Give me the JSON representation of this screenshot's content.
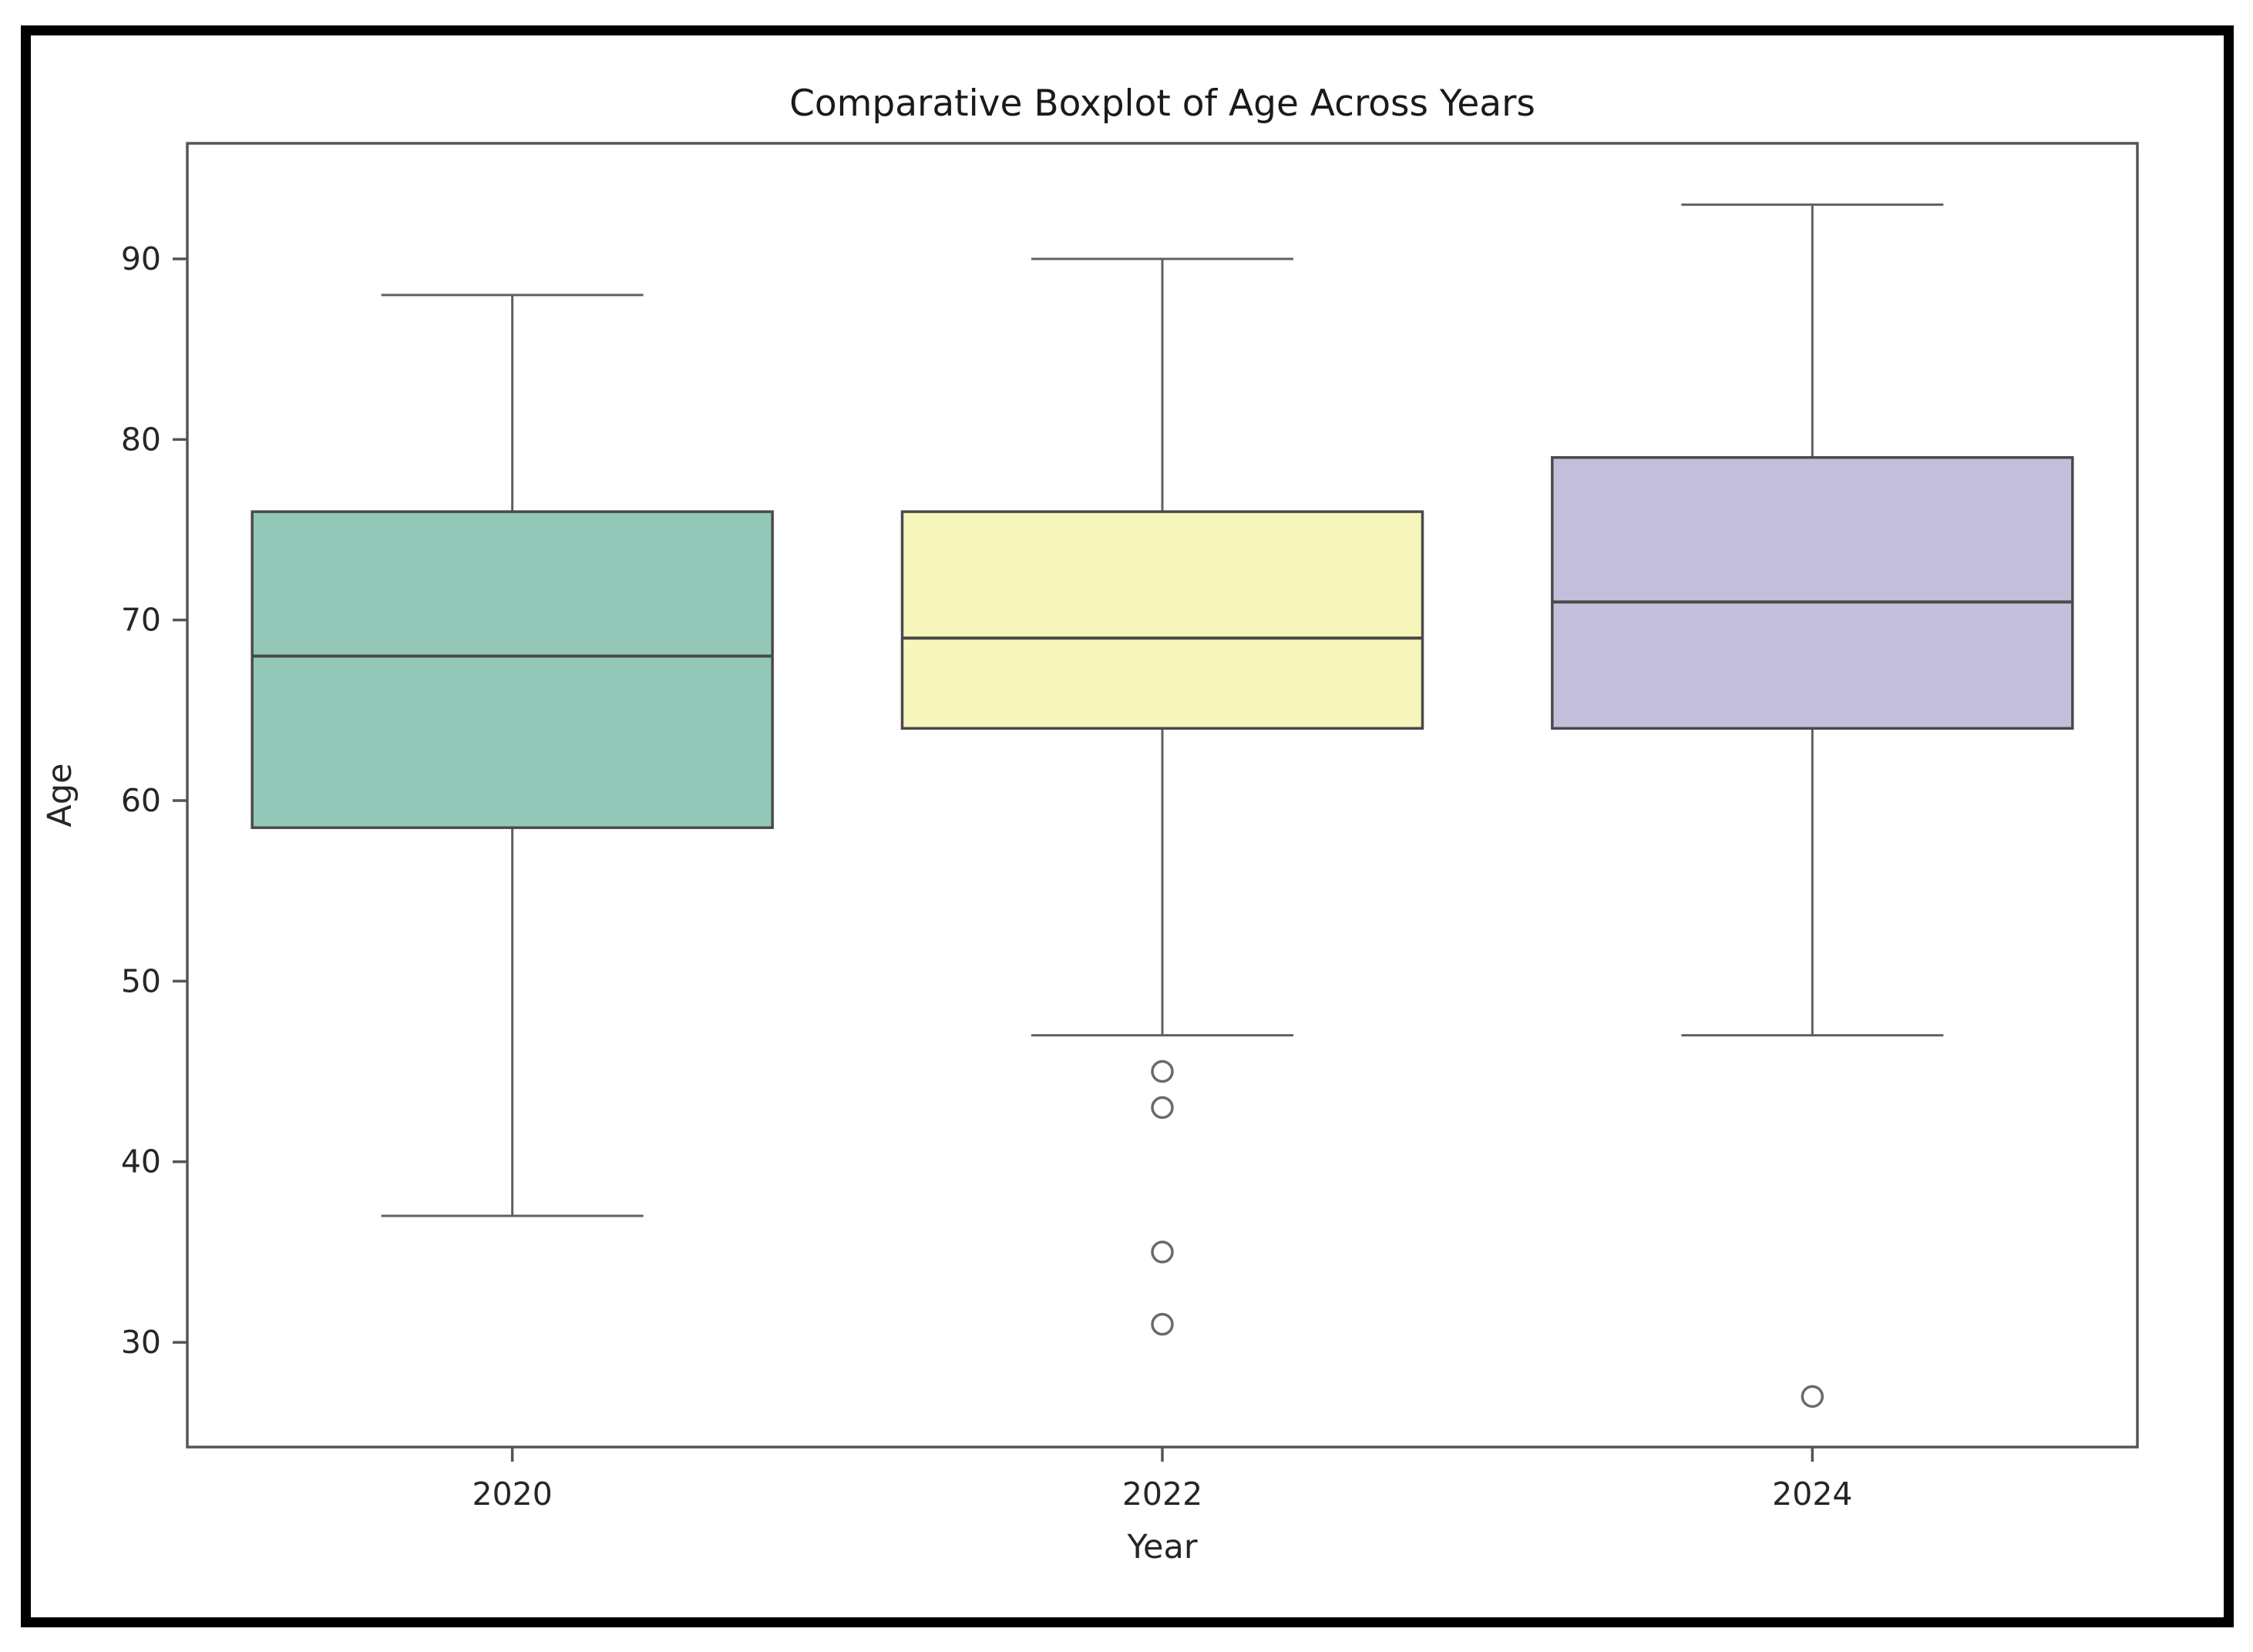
{
  "figure": {
    "title": "Comparative Boxplot of Age Across Years",
    "xlabel": "Year",
    "ylabel": "Age"
  },
  "chart_data": {
    "type": "boxplot",
    "title": "Comparative Boxplot of Age Across Years",
    "xlabel": "Year",
    "ylabel": "Age",
    "categories": [
      "2020",
      "2022",
      "2024"
    ],
    "ylim": [
      24.2,
      96.4
    ],
    "yticks": [
      30,
      40,
      50,
      60,
      70,
      80,
      90
    ],
    "grid": false,
    "legend_position": "none",
    "series": [
      {
        "name": "2020",
        "whisker_low": 37,
        "q1": 58.5,
        "median": 68,
        "q3": 76,
        "whisker_high": 88,
        "outliers": [],
        "fill_color": "#93C8B8"
      },
      {
        "name": "2022",
        "whisker_low": 47,
        "q1": 64,
        "median": 69,
        "q3": 76,
        "whisker_high": 90,
        "outliers": [
          45,
          43,
          35,
          31
        ],
        "fill_color": "#F6F6BC"
      },
      {
        "name": "2024",
        "whisker_low": 47,
        "q1": 64,
        "median": 71,
        "q3": 79,
        "whisker_high": 93,
        "outliers": [
          27
        ],
        "fill_color": "#C3BFDA"
      }
    ],
    "colors": {
      "box_edge": "#4a4a4a",
      "median_line": "#4a4a4a",
      "whisker": "#606060",
      "outlier_edge": "#6a6a6a",
      "axes_frame": "#555555",
      "tick_text": "#262626",
      "title_text": "#1a1a1a",
      "outer_border": "#000000"
    }
  }
}
